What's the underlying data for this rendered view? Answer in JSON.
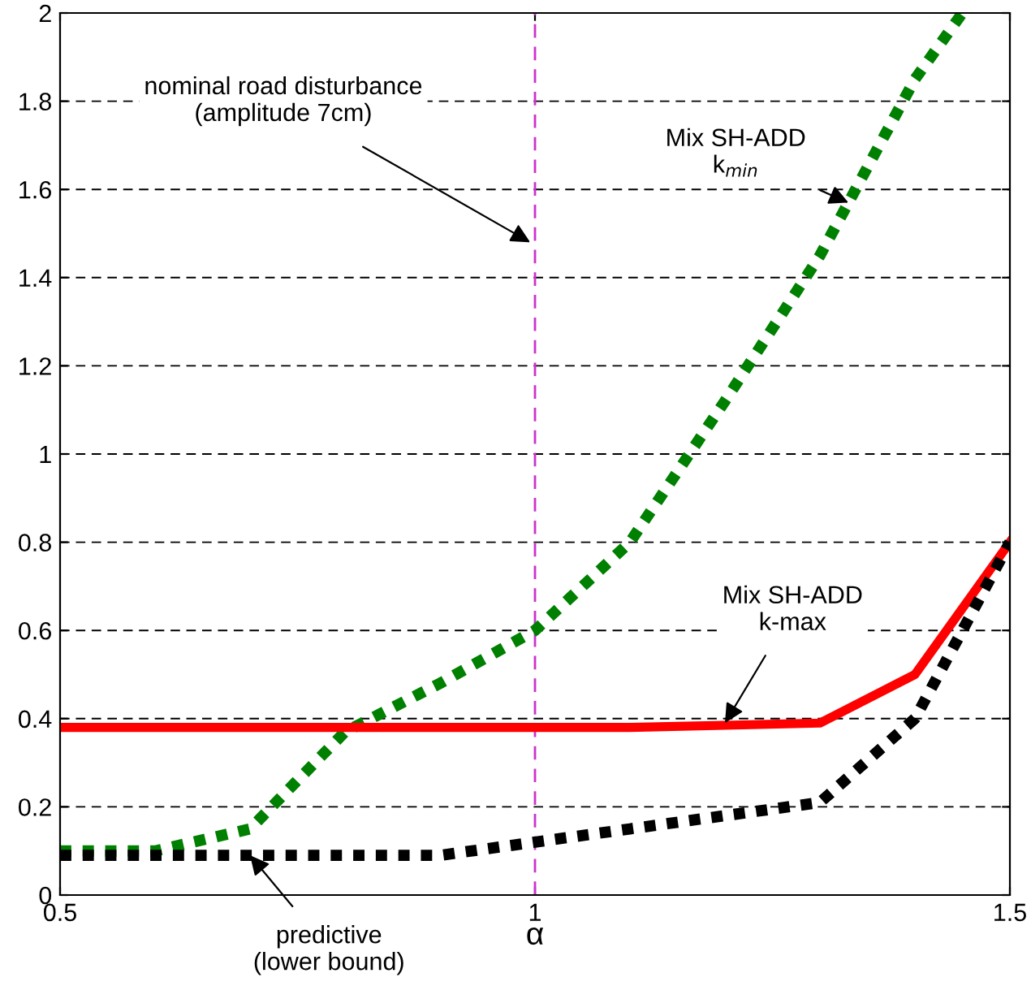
{
  "chart_data": {
    "type": "line",
    "xlabel": "α",
    "xlim": [
      0.5,
      1.5
    ],
    "xticks": [
      0.5,
      1,
      1.5
    ],
    "ylim": [
      0,
      2
    ],
    "yticks": [
      0,
      0.2,
      0.4,
      0.6,
      0.8,
      1,
      1.2,
      1.4,
      1.6,
      1.8,
      2
    ],
    "grid": "y",
    "legend": false,
    "marker": "none",
    "series": [
      {
        "color": "#008000",
        "line_style": "dotted",
        "x": [
          0.5,
          0.6,
          0.7,
          0.8,
          0.9,
          1.0,
          1.1,
          1.2,
          1.3,
          1.4,
          1.45
        ],
        "values": [
          0.1,
          0.1,
          0.15,
          0.37,
          0.48,
          0.6,
          0.8,
          1.12,
          1.45,
          1.85,
          2.0
        ]
      },
      {
        "color": "#ff0000",
        "line_style": "solid",
        "x": [
          0.5,
          0.6,
          0.7,
          0.8,
          0.9,
          1.0,
          1.1,
          1.2,
          1.3,
          1.4,
          1.5
        ],
        "values": [
          0.38,
          0.38,
          0.38,
          0.38,
          0.38,
          0.38,
          0.38,
          0.385,
          0.39,
          0.5,
          0.8
        ]
      },
      {
        "color": "#000000",
        "line_style": "dotted",
        "x": [
          0.5,
          0.6,
          0.7,
          0.8,
          0.9,
          1.0,
          1.1,
          1.2,
          1.3,
          1.4,
          1.5
        ],
        "values": [
          0.09,
          0.09,
          0.09,
          0.09,
          0.09,
          0.12,
          0.15,
          0.18,
          0.21,
          0.4,
          0.8
        ]
      }
    ],
    "ref_lines": [
      {
        "axis": "x",
        "value": 1,
        "color": "#cc33cc",
        "line_style": "dashed"
      }
    ],
    "annotations": [
      "nominal road disturbance\n(amplitude 7cm)",
      {
        "text": "Mix SH-ADD\nk$_{min}$",
        "x": 1.33,
        "y": 1.57
      },
      {
        "text": "Mix SH-ADD\nk-max",
        "x": 1.2,
        "y": 0.39
      },
      {
        "text": "predictive\n(lower bound)",
        "x": 0.7,
        "y": 0.09
      }
    ]
  }
}
